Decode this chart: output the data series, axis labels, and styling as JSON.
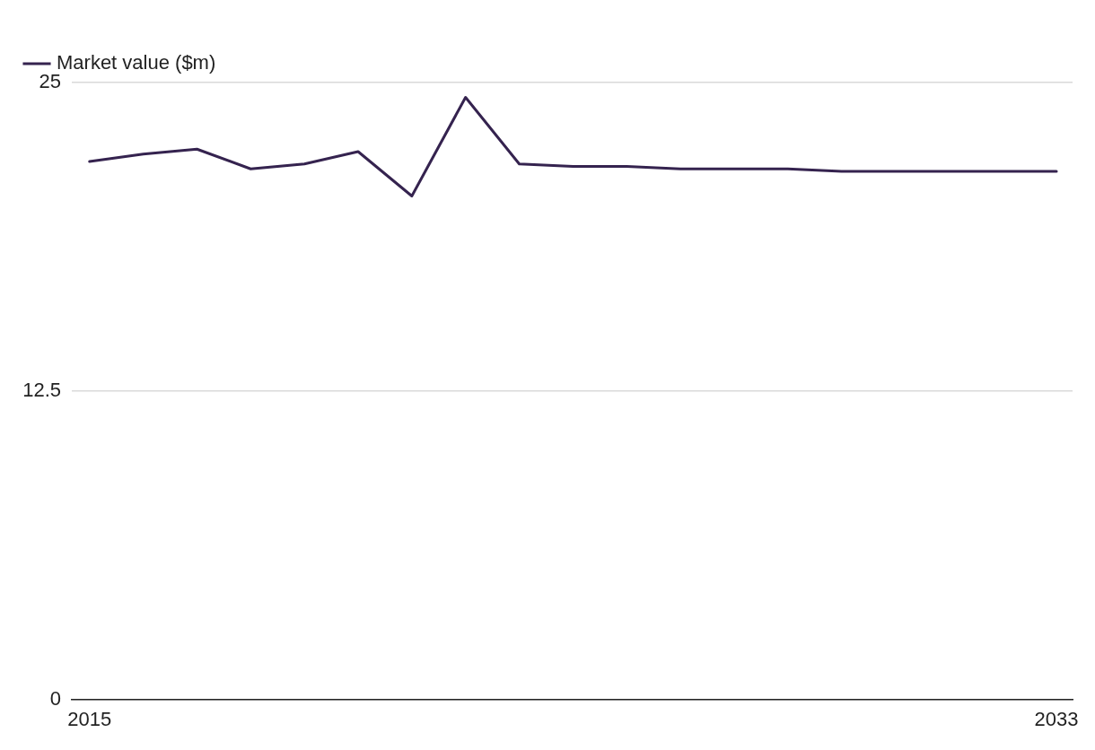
{
  "chart_data": {
    "type": "line",
    "x": [
      2015,
      2016,
      2017,
      2018,
      2019,
      2020,
      2021,
      2022,
      2023,
      2024,
      2025,
      2026,
      2027,
      2028,
      2029,
      2030,
      2031,
      2032,
      2033
    ],
    "series": [
      {
        "name": "Market value ($m)",
        "color": "#35234f",
        "values": [
          21.8,
          22.1,
          22.3,
          21.5,
          21.7,
          22.2,
          20.4,
          24.4,
          21.7,
          21.6,
          21.6,
          21.5,
          21.5,
          21.5,
          21.4,
          21.4,
          21.4,
          21.4,
          21.4
        ]
      }
    ],
    "xlim": [
      2014.67,
      2033.3
    ],
    "xticks": [
      2015,
      2033
    ],
    "ylim": [
      0,
      25
    ],
    "yticks": [
      0,
      12.5,
      25
    ],
    "grid": "y",
    "legend": "top left",
    "marker": "none",
    "line_style": "solid"
  }
}
